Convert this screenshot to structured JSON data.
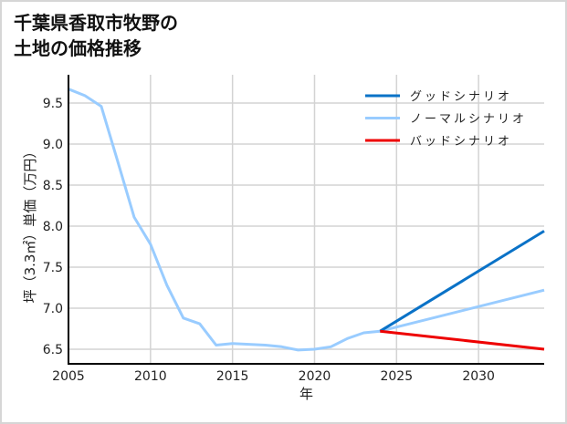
{
  "title_line1": "千葉県香取市牧野の",
  "title_line2": "土地の価格推移",
  "chart_data": {
    "type": "line",
    "title": "千葉県香取市牧野の土地の価格推移",
    "xlabel": "年",
    "ylabel": "坪（3.3㎡）単価（万円）",
    "xlim": [
      2005,
      2034
    ],
    "ylim": [
      6.33,
      9.83
    ],
    "x_ticks": [
      "2005",
      "2010",
      "2015",
      "2020",
      "2025",
      "2030"
    ],
    "y_ticks": [
      "6.5",
      "7.0",
      "7.5",
      "8.0",
      "8.5",
      "9.0",
      "9.5"
    ],
    "grid": true,
    "legend_position": "upper right",
    "series": [
      {
        "name": "グッドシナリオ",
        "color": "#0a72c7",
        "x": [
          2024,
          2034
        ],
        "values": [
          6.72,
          7.94
        ]
      },
      {
        "name": "ノーマルシナリオ",
        "color": "#99ccff",
        "x": [
          2005,
          2006,
          2007,
          2008,
          2009,
          2010,
          2011,
          2012,
          2013,
          2014,
          2015,
          2016,
          2017,
          2018,
          2019,
          2020,
          2021,
          2022,
          2023,
          2024,
          2034
        ],
        "values": [
          9.67,
          9.59,
          9.46,
          8.79,
          8.11,
          7.78,
          7.28,
          6.88,
          6.81,
          6.55,
          6.57,
          6.56,
          6.55,
          6.53,
          6.49,
          6.5,
          6.53,
          6.63,
          6.7,
          6.72,
          7.22
        ]
      },
      {
        "name": "バッドシナリオ",
        "color": "#ee0000",
        "x": [
          2024,
          2034
        ],
        "values": [
          6.72,
          6.5
        ]
      }
    ]
  }
}
